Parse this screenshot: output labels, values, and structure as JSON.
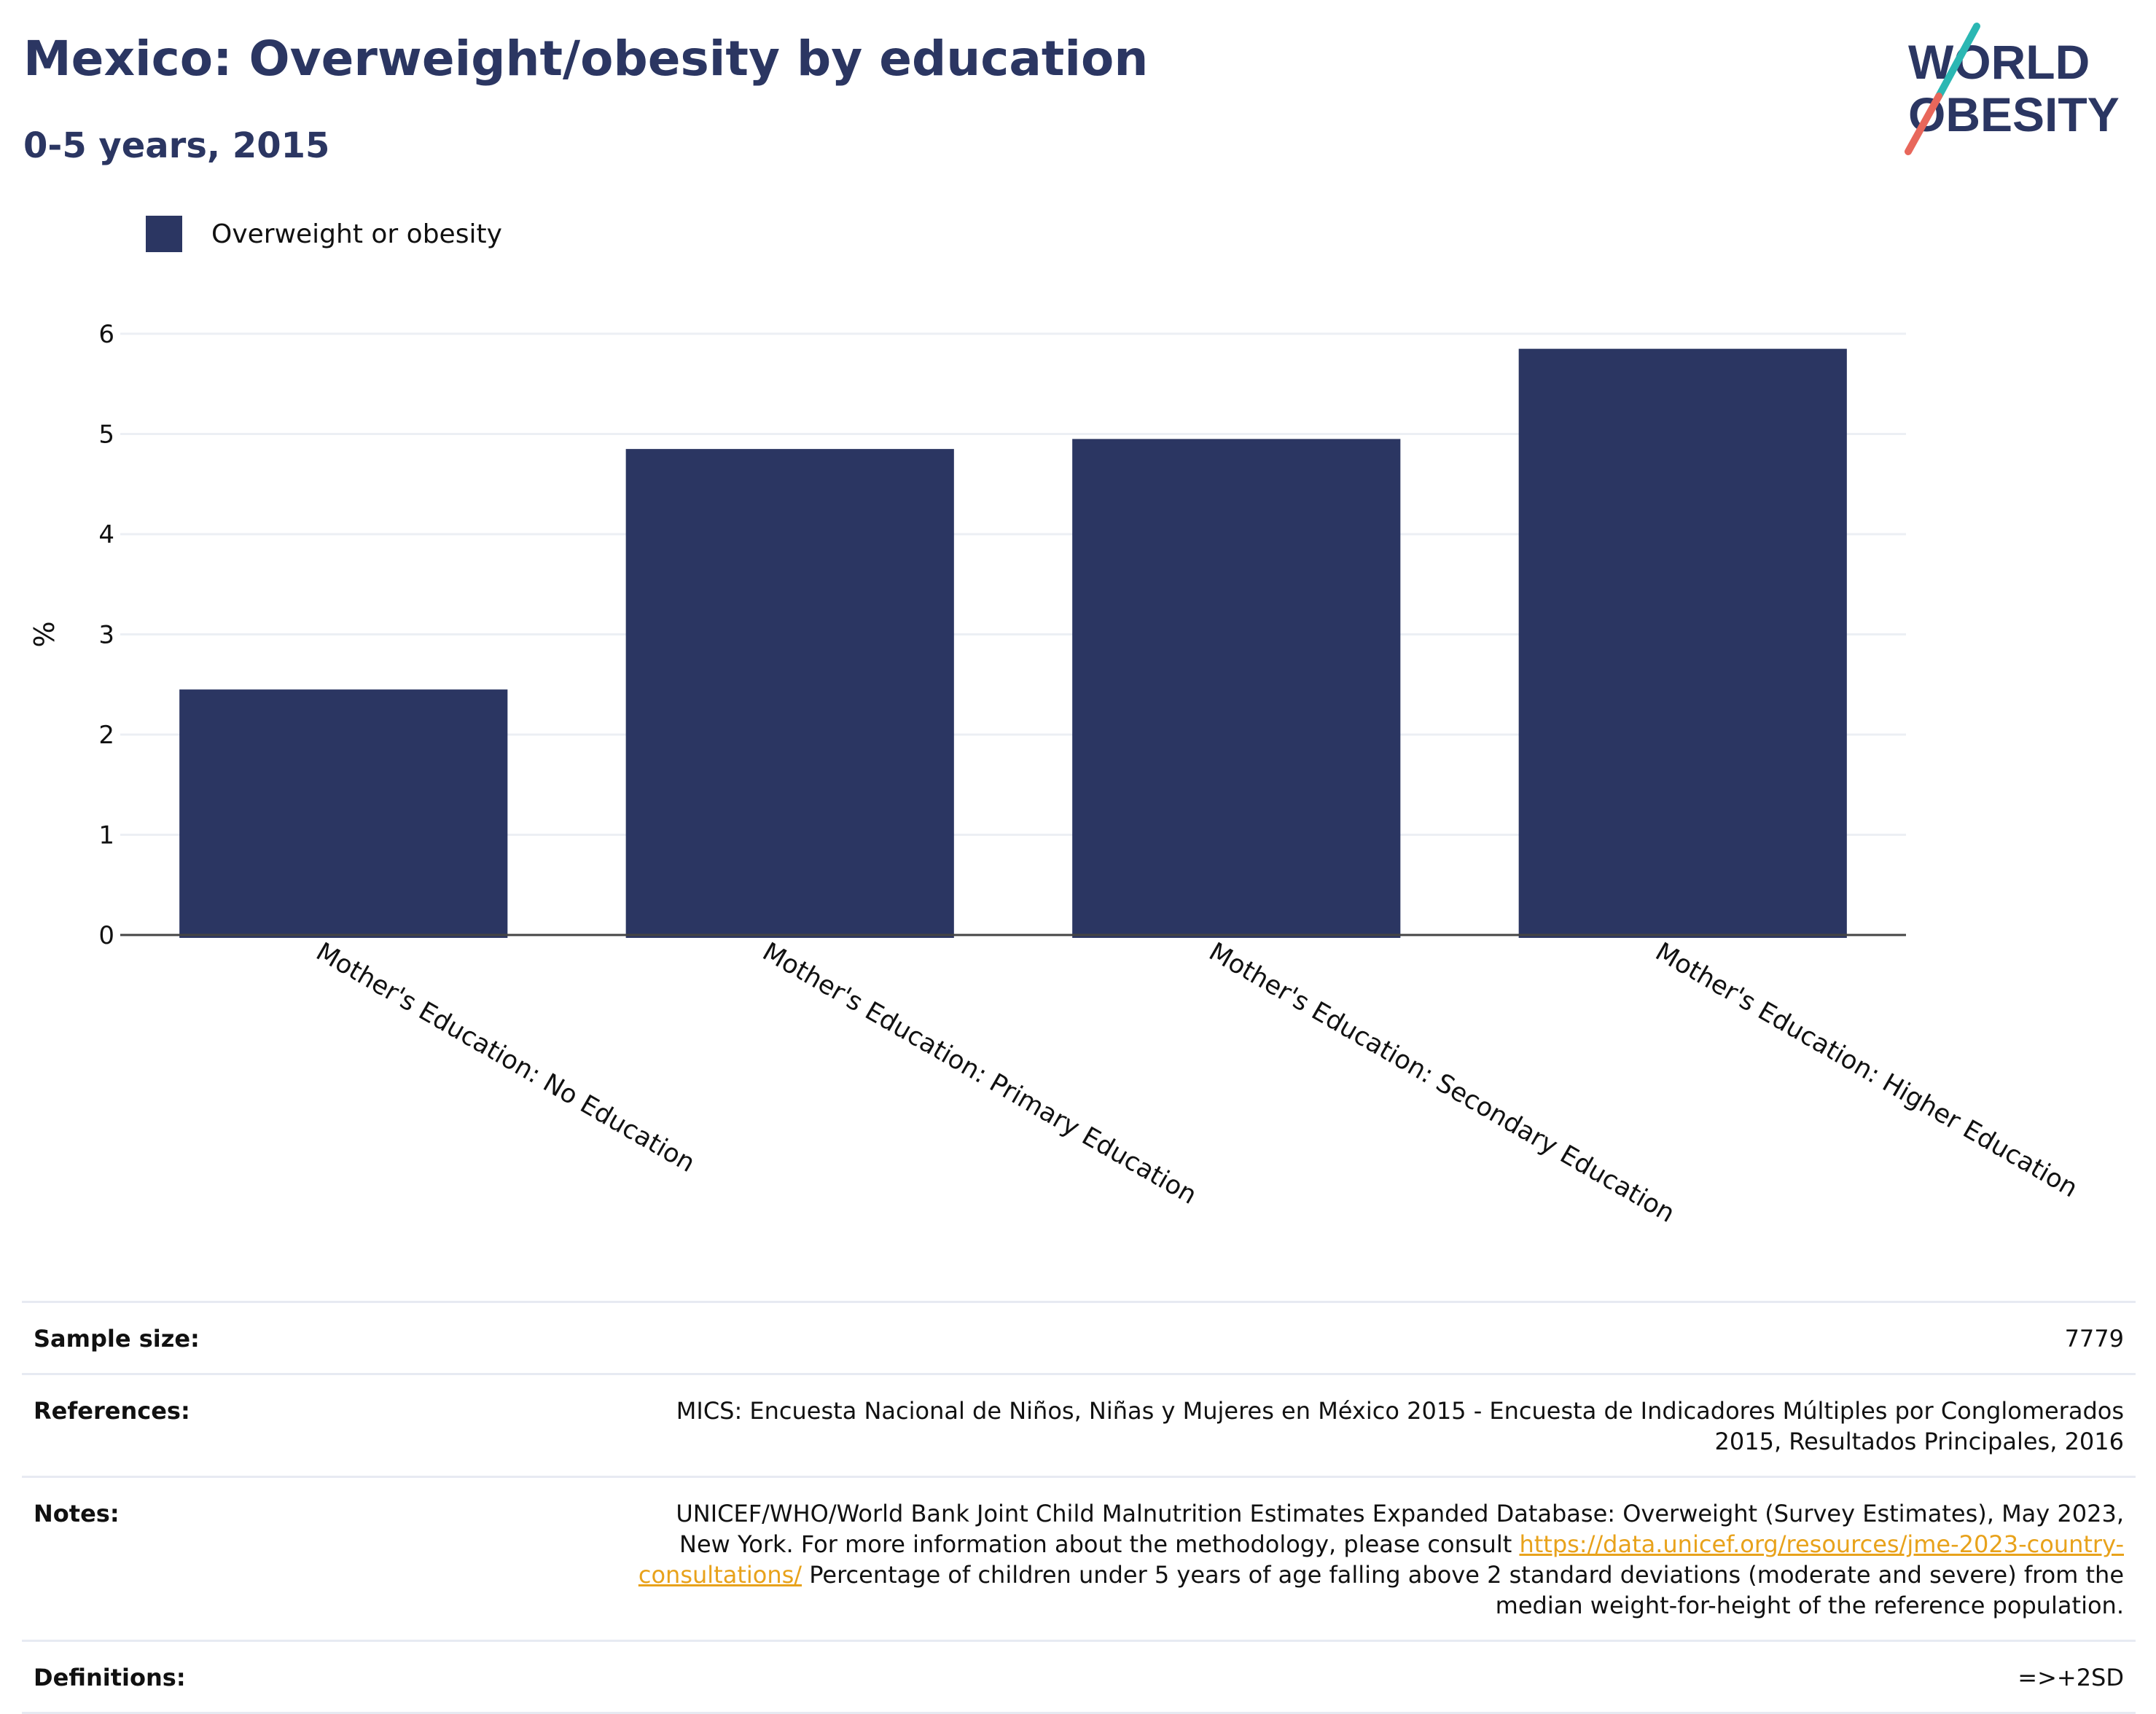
{
  "header": {
    "title": "Mexico: Overweight/obesity by education",
    "subtitle": "0-5 years, 2015"
  },
  "logo": {
    "line1": "WORLD",
    "line2": "OBESITY"
  },
  "colors": {
    "bar": "#2b3662",
    "title": "#2b3662",
    "link": "#e8a21b",
    "logo_teal": "#2bb7b3",
    "logo_coral": "#e8675b"
  },
  "chart_data": {
    "type": "bar",
    "categories": [
      "Mother's Education: No Education",
      "Mother's Education: Primary Education",
      "Mother's Education: Secondary Education",
      "Mother's Education: Higher Education"
    ],
    "series": [
      {
        "name": "Overweight or obesity",
        "values": [
          2.45,
          4.85,
          4.95,
          5.85
        ]
      }
    ],
    "ylabel": "%",
    "ylim": [
      0,
      6
    ],
    "yticks": [
      0,
      1,
      2,
      3,
      4,
      5,
      6
    ],
    "grid": true,
    "legend_position": "top-left"
  },
  "footer": {
    "sample_size": {
      "label": "Sample size:",
      "value": "7779"
    },
    "references": {
      "label": "References:",
      "value": "MICS: Encuesta Nacional de Niños, Niñas y Mujeres en México 2015 - Encuesta de Indicadores Múltiples por Conglomerados 2015, Resultados Principales, 2016"
    },
    "notes": {
      "label": "Notes:",
      "text_before": "UNICEF/WHO/World Bank Joint Child Malnutrition Estimates Expanded Database: Overweight (Survey Estimates), May 2023, New York. For more information about the methodology, please consult ",
      "link": "https://data.unicef.org/resources/jme-2023-country-consultations/",
      "text_after": " Percentage of children under 5 years of age falling above 2 standard deviations (moderate and severe) from the median weight-for-height of the reference population."
    },
    "definitions": {
      "label": "Definitions:",
      "value": "=>+2SD"
    }
  }
}
